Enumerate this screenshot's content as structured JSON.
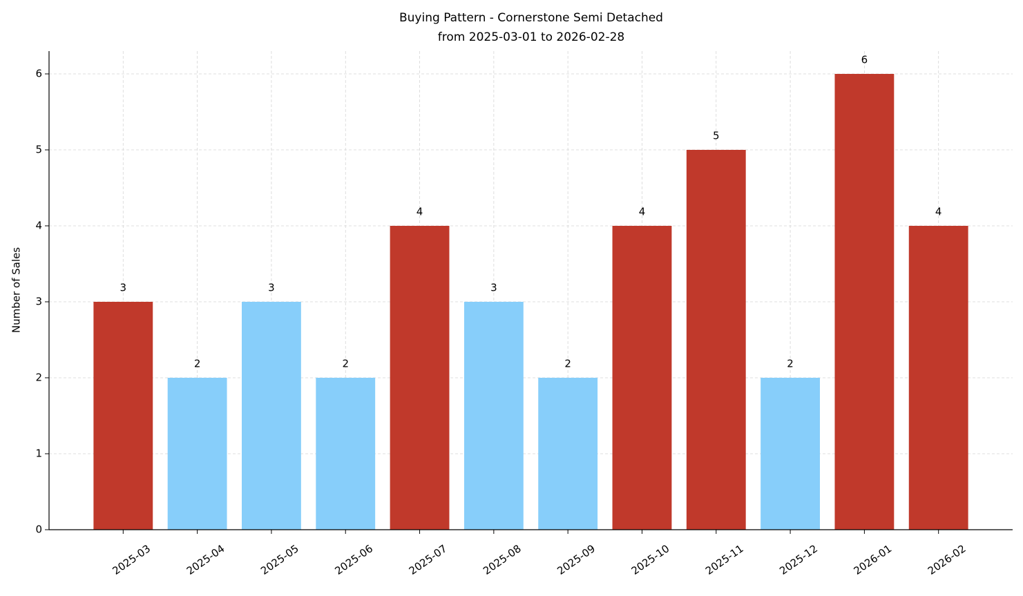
{
  "chart_data": {
    "type": "bar",
    "title": "Buying Pattern - Cornerstone Semi Detached",
    "subtitle": "from 2025-03-01 to 2026-02-28",
    "y_label": "Number of Sales",
    "categories": [
      "2025-03",
      "2025-04",
      "2025-05",
      "2025-06",
      "2025-07",
      "2025-08",
      "2025-09",
      "2025-10",
      "2025-11",
      "2025-12",
      "2026-01",
      "2026-02"
    ],
    "values": [
      3,
      2,
      3,
      2,
      4,
      3,
      2,
      4,
      5,
      2,
      6,
      4
    ],
    "colors": [
      "#c0392b",
      "#87cefa",
      "#87cefa",
      "#87cefa",
      "#c0392b",
      "#87cefa",
      "#87cefa",
      "#c0392b",
      "#c0392b",
      "#87cefa",
      "#c0392b",
      "#c0392b"
    ],
    "ylim": [
      0,
      6.3
    ],
    "yticks": [
      0,
      1,
      2,
      3,
      4,
      5,
      6
    ],
    "grid": true
  }
}
